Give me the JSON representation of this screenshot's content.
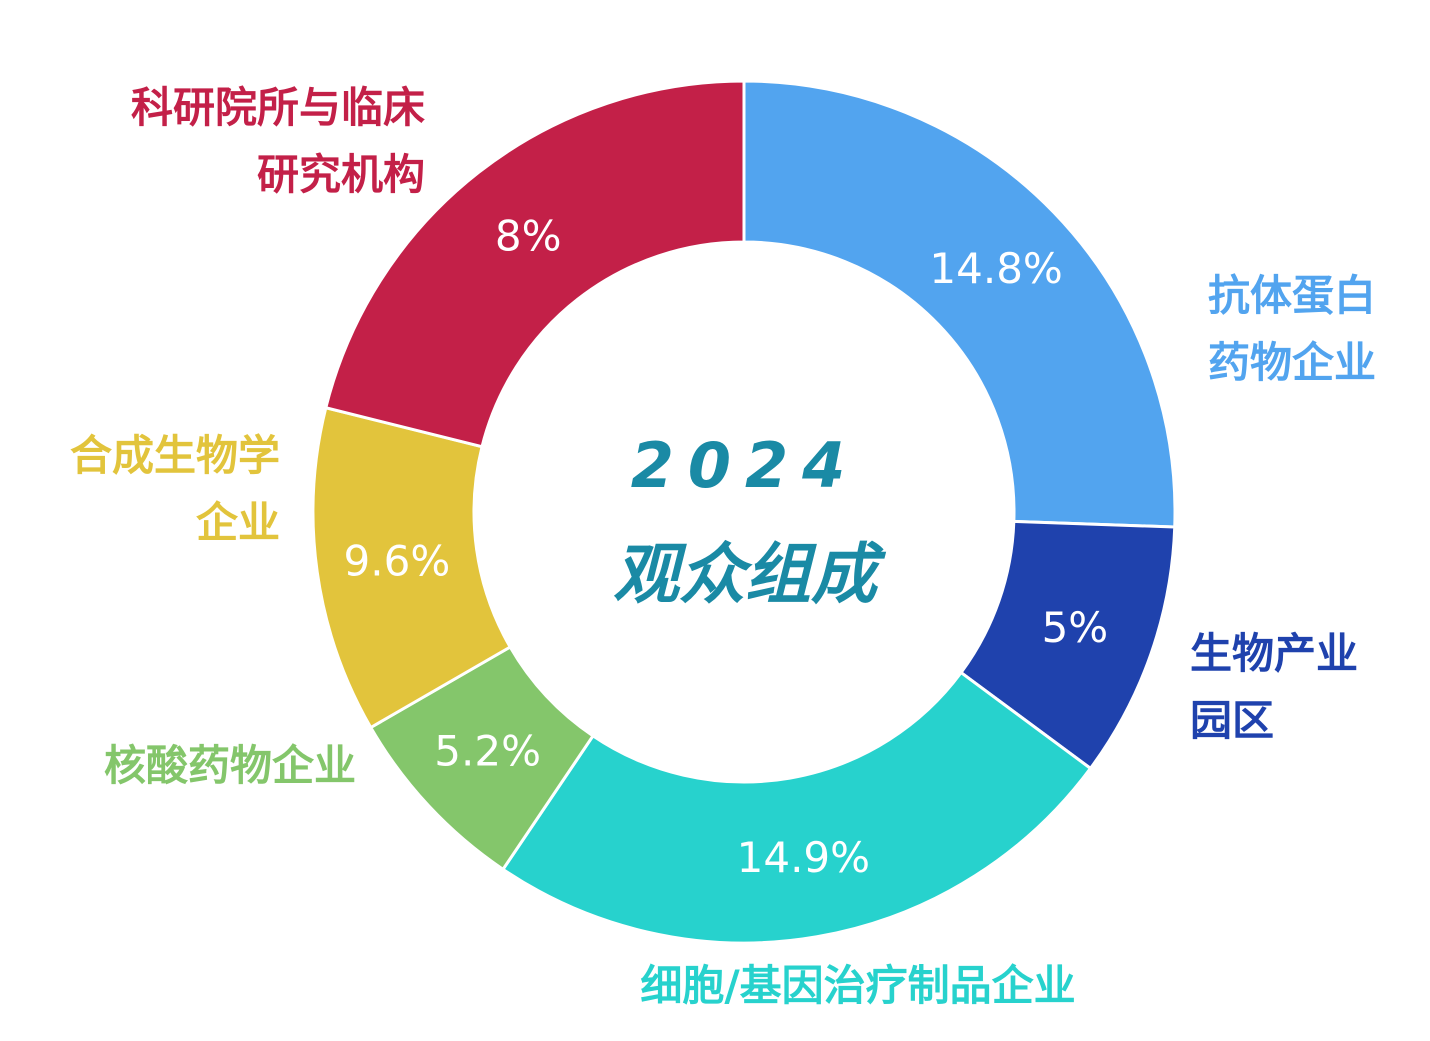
{
  "chart_data": {
    "type": "pie",
    "center_title": [
      "2024",
      "观众组成"
    ],
    "slices": [
      {
        "label_lines": [
          "抗体蛋白",
          "药物企业"
        ],
        "value_label": "14.8%",
        "color": "#52a4ef"
      },
      {
        "label_lines": [
          "生物产业",
          "园区"
        ],
        "value_label": "5%",
        "color": "#1f42ad"
      },
      {
        "label_lines": [
          "细胞/基因治疗制品企业"
        ],
        "value_label": "14.9%",
        "color": "#27d2cd"
      },
      {
        "label_lines": [
          "核酸药物企业"
        ],
        "value_label": "5.2%",
        "color": "#84c66b"
      },
      {
        "label_lines": [
          "合成生物学",
          "企业"
        ],
        "value_label": "9.6%",
        "color": "#e2c43c"
      },
      {
        "label_lines": [
          "科研院所与临床",
          "研究机构"
        ],
        "value_label": "8%",
        "color": "#c32048"
      }
    ]
  }
}
